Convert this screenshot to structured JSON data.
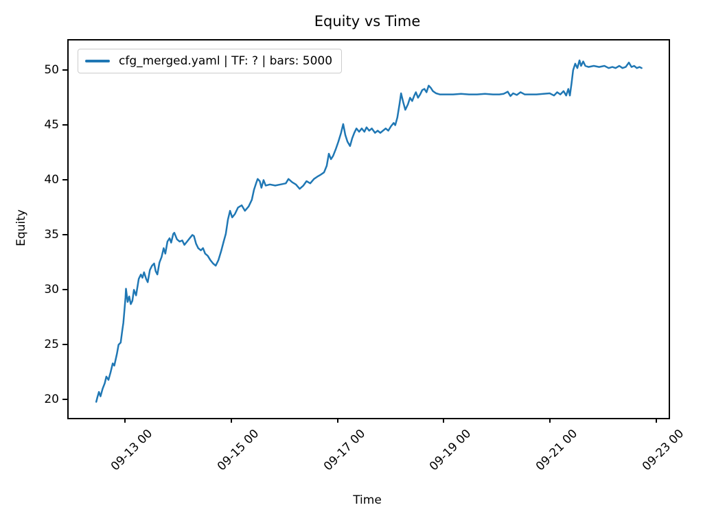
{
  "title": "Equity vs Time",
  "chart_data": {
    "type": "line",
    "title": "Equity vs Time",
    "xlabel": "Time",
    "ylabel": "Equity",
    "legend_position": "upper left",
    "grid": false,
    "line_color": "#1f77b4",
    "axis_color": "#000000",
    "x_unit": "days since 09-12 00:00",
    "xlim": [
      -0.09,
      11.21
    ],
    "ylim": [
      18.44,
      52.81
    ],
    "y_ticks": [
      20,
      25,
      30,
      35,
      40,
      45,
      50
    ],
    "x_ticks": [
      {
        "pos": 1,
        "label": "09-13 00"
      },
      {
        "pos": 3,
        "label": "09-15 00"
      },
      {
        "pos": 5,
        "label": "09-17 00"
      },
      {
        "pos": 7,
        "label": "09-19 00"
      },
      {
        "pos": 9,
        "label": "09-21 00"
      },
      {
        "pos": 11,
        "label": "09-23 00"
      }
    ],
    "series": [
      {
        "name": "cfg_merged.yaml | TF: ? | bars: 5000",
        "color": "#1f77b4",
        "points": [
          [
            0.43,
            19.9
          ],
          [
            0.45,
            20.3
          ],
          [
            0.48,
            20.8
          ],
          [
            0.51,
            20.4
          ],
          [
            0.55,
            21.1
          ],
          [
            0.59,
            21.6
          ],
          [
            0.62,
            22.2
          ],
          [
            0.66,
            21.9
          ],
          [
            0.7,
            22.6
          ],
          [
            0.74,
            23.4
          ],
          [
            0.77,
            23.2
          ],
          [
            0.82,
            24.3
          ],
          [
            0.85,
            25.1
          ],
          [
            0.89,
            25.3
          ],
          [
            0.92,
            26.4
          ],
          [
            0.94,
            27.1
          ],
          [
            0.96,
            28.2
          ],
          [
            0.98,
            29.4
          ],
          [
            0.99,
            30.2
          ],
          [
            1.02,
            29.0
          ],
          [
            1.05,
            29.5
          ],
          [
            1.08,
            28.8
          ],
          [
            1.11,
            29.1
          ],
          [
            1.14,
            30.1
          ],
          [
            1.18,
            29.6
          ],
          [
            1.23,
            31.1
          ],
          [
            1.27,
            31.5
          ],
          [
            1.3,
            31.2
          ],
          [
            1.33,
            31.7
          ],
          [
            1.37,
            31.1
          ],
          [
            1.4,
            30.8
          ],
          [
            1.44,
            31.9
          ],
          [
            1.48,
            32.3
          ],
          [
            1.52,
            32.5
          ],
          [
            1.55,
            31.8
          ],
          [
            1.58,
            31.5
          ],
          [
            1.62,
            32.6
          ],
          [
            1.66,
            33.1
          ],
          [
            1.7,
            33.9
          ],
          [
            1.73,
            33.4
          ],
          [
            1.77,
            34.5
          ],
          [
            1.81,
            34.8
          ],
          [
            1.84,
            34.4
          ],
          [
            1.88,
            35.2
          ],
          [
            1.9,
            35.3
          ],
          [
            1.95,
            34.7
          ],
          [
            2.0,
            34.5
          ],
          [
            2.05,
            34.6
          ],
          [
            2.09,
            34.2
          ],
          [
            2.14,
            34.5
          ],
          [
            2.19,
            34.8
          ],
          [
            2.24,
            35.1
          ],
          [
            2.27,
            35.0
          ],
          [
            2.31,
            34.3
          ],
          [
            2.35,
            33.9
          ],
          [
            2.4,
            33.7
          ],
          [
            2.44,
            33.9
          ],
          [
            2.48,
            33.4
          ],
          [
            2.53,
            33.2
          ],
          [
            2.58,
            32.8
          ],
          [
            2.63,
            32.5
          ],
          [
            2.68,
            32.3
          ],
          [
            2.73,
            32.8
          ],
          [
            2.78,
            33.6
          ],
          [
            2.83,
            34.5
          ],
          [
            2.87,
            35.2
          ],
          [
            2.91,
            36.5
          ],
          [
            2.95,
            37.3
          ],
          [
            2.99,
            36.7
          ],
          [
            3.04,
            37.0
          ],
          [
            3.1,
            37.6
          ],
          [
            3.17,
            37.8
          ],
          [
            3.23,
            37.3
          ],
          [
            3.3,
            37.7
          ],
          [
            3.36,
            38.3
          ],
          [
            3.4,
            39.2
          ],
          [
            3.44,
            39.8
          ],
          [
            3.47,
            40.2
          ],
          [
            3.51,
            40.0
          ],
          [
            3.54,
            39.4
          ],
          [
            3.58,
            40.1
          ],
          [
            3.62,
            39.6
          ],
          [
            3.7,
            39.7
          ],
          [
            3.8,
            39.6
          ],
          [
            3.9,
            39.7
          ],
          [
            4.0,
            39.8
          ],
          [
            4.05,
            40.2
          ],
          [
            4.12,
            39.9
          ],
          [
            4.19,
            39.7
          ],
          [
            4.26,
            39.3
          ],
          [
            4.33,
            39.6
          ],
          [
            4.39,
            40.0
          ],
          [
            4.46,
            39.8
          ],
          [
            4.53,
            40.2
          ],
          [
            4.59,
            40.4
          ],
          [
            4.66,
            40.6
          ],
          [
            4.72,
            40.8
          ],
          [
            4.77,
            41.4
          ],
          [
            4.81,
            42.5
          ],
          [
            4.85,
            42.0
          ],
          [
            4.89,
            42.3
          ],
          [
            4.94,
            42.9
          ],
          [
            4.99,
            43.6
          ],
          [
            5.04,
            44.4
          ],
          [
            5.08,
            45.2
          ],
          [
            5.12,
            44.2
          ],
          [
            5.16,
            43.6
          ],
          [
            5.21,
            43.2
          ],
          [
            5.25,
            43.9
          ],
          [
            5.29,
            44.4
          ],
          [
            5.33,
            44.8
          ],
          [
            5.38,
            44.5
          ],
          [
            5.43,
            44.8
          ],
          [
            5.48,
            44.5
          ],
          [
            5.52,
            44.9
          ],
          [
            5.57,
            44.6
          ],
          [
            5.62,
            44.8
          ],
          [
            5.68,
            44.4
          ],
          [
            5.73,
            44.6
          ],
          [
            5.78,
            44.4
          ],
          [
            5.83,
            44.6
          ],
          [
            5.88,
            44.8
          ],
          [
            5.93,
            44.6
          ],
          [
            5.98,
            45.0
          ],
          [
            6.03,
            45.3
          ],
          [
            6.06,
            45.1
          ],
          [
            6.1,
            45.8
          ],
          [
            6.14,
            47.0
          ],
          [
            6.17,
            48.0
          ],
          [
            6.21,
            47.2
          ],
          [
            6.25,
            46.5
          ],
          [
            6.3,
            47.0
          ],
          [
            6.34,
            47.6
          ],
          [
            6.38,
            47.3
          ],
          [
            6.42,
            47.8
          ],
          [
            6.45,
            48.1
          ],
          [
            6.49,
            47.6
          ],
          [
            6.53,
            47.9
          ],
          [
            6.57,
            48.3
          ],
          [
            6.61,
            48.4
          ],
          [
            6.65,
            48.1
          ],
          [
            6.69,
            48.7
          ],
          [
            6.73,
            48.5
          ],
          [
            6.77,
            48.2
          ],
          [
            6.83,
            48.0
          ],
          [
            6.9,
            47.9
          ],
          [
            7.0,
            47.9
          ],
          [
            7.15,
            47.9
          ],
          [
            7.3,
            47.95
          ],
          [
            7.45,
            47.9
          ],
          [
            7.6,
            47.9
          ],
          [
            7.75,
            47.95
          ],
          [
            7.9,
            47.9
          ],
          [
            8.02,
            47.9
          ],
          [
            8.1,
            47.95
          ],
          [
            8.18,
            48.15
          ],
          [
            8.23,
            47.75
          ],
          [
            8.28,
            48.0
          ],
          [
            8.35,
            47.85
          ],
          [
            8.42,
            48.1
          ],
          [
            8.5,
            47.9
          ],
          [
            8.6,
            47.9
          ],
          [
            8.72,
            47.9
          ],
          [
            8.85,
            47.95
          ],
          [
            8.97,
            48.0
          ],
          [
            9.05,
            47.8
          ],
          [
            9.11,
            48.1
          ],
          [
            9.17,
            47.9
          ],
          [
            9.23,
            48.2
          ],
          [
            9.28,
            47.8
          ],
          [
            9.32,
            48.4
          ],
          [
            9.35,
            47.8
          ],
          [
            9.38,
            48.9
          ],
          [
            9.41,
            50.1
          ],
          [
            9.45,
            50.7
          ],
          [
            9.49,
            50.3
          ],
          [
            9.53,
            51.0
          ],
          [
            9.56,
            50.5
          ],
          [
            9.6,
            50.9
          ],
          [
            9.64,
            50.5
          ],
          [
            9.7,
            50.4
          ],
          [
            9.8,
            50.5
          ],
          [
            9.9,
            50.4
          ],
          [
            10.0,
            50.5
          ],
          [
            10.08,
            50.3
          ],
          [
            10.15,
            50.4
          ],
          [
            10.21,
            50.3
          ],
          [
            10.28,
            50.5
          ],
          [
            10.34,
            50.3
          ],
          [
            10.4,
            50.4
          ],
          [
            10.46,
            50.8
          ],
          [
            10.51,
            50.4
          ],
          [
            10.56,
            50.5
          ],
          [
            10.61,
            50.3
          ],
          [
            10.66,
            50.4
          ],
          [
            10.7,
            50.3
          ]
        ]
      }
    ]
  }
}
